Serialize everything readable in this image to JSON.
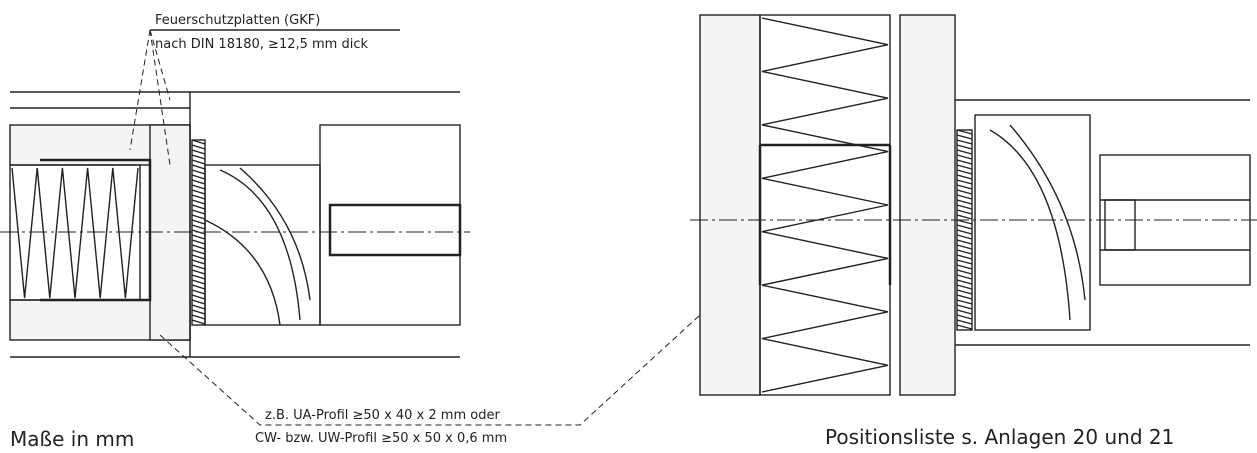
{
  "labels": {
    "plates_title": "Feuerschutzplatten (GKF)",
    "plates_spec": "nach DIN 18180, ≥12,5 mm dick",
    "profile_a": "z.B. UA-Profil ≥50 x 40 x 2 mm oder",
    "profile_b": "CW- bzw. UW-Profil ≥50 x 50 x 0,6 mm",
    "units": "Maße in mm",
    "position_list": "Positionsliste s. Anlagen 20 und 21"
  }
}
